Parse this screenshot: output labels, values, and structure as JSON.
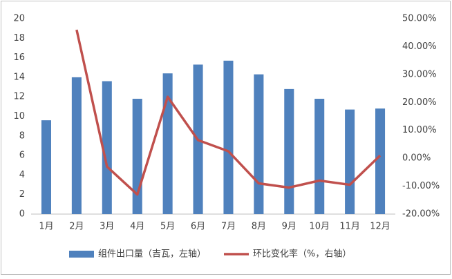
{
  "chart_data": {
    "type": "bar",
    "categories": [
      "1月",
      "2月",
      "3月",
      "4月",
      "5月",
      "6月",
      "7月",
      "8月",
      "9月",
      "10月",
      "11月",
      "12月"
    ],
    "series": [
      {
        "name": "组件出口量（吉瓦，左轴）",
        "type": "bar",
        "color": "#4f81bd",
        "values": [
          9.6,
          14.0,
          13.6,
          11.8,
          14.4,
          15.3,
          15.7,
          14.3,
          12.8,
          11.8,
          10.7,
          10.8
        ]
      },
      {
        "name": "环比变化率（%，右轴）",
        "type": "line",
        "axis": "y2",
        "color": "#c0504d",
        "values": [
          null,
          46,
          -3,
          -13,
          22,
          6.5,
          2.5,
          -9,
          -10.5,
          -8,
          -9.5,
          1
        ]
      }
    ],
    "ylim": [
      0,
      20
    ],
    "yticks": [
      0,
      2,
      4,
      6,
      8,
      10,
      12,
      14,
      16,
      18,
      20
    ],
    "y2lim": [
      -20,
      50
    ],
    "y2ticks": [
      {
        "value": -20,
        "label": "-20.00%"
      },
      {
        "value": -10,
        "label": "-10.00%"
      },
      {
        "value": 0,
        "label": "0.00%"
      },
      {
        "value": 10,
        "label": "10.00%"
      },
      {
        "value": 20,
        "label": "20.00%"
      },
      {
        "value": 30,
        "label": "30.00%"
      },
      {
        "value": 40,
        "label": "40.00%"
      },
      {
        "value": 50,
        "label": "50.00%"
      }
    ],
    "legend": "bottom"
  }
}
